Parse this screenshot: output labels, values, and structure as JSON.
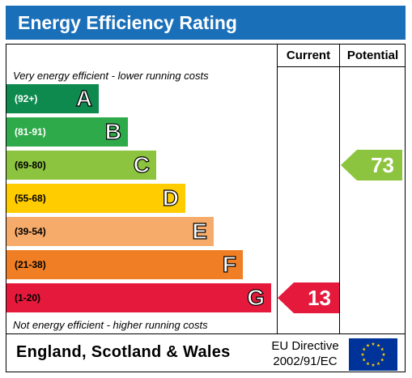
{
  "title": "Energy Efficiency Rating",
  "columns": {
    "current": "Current",
    "potential": "Potential"
  },
  "notes": {
    "top": "Very energy efficient - lower running costs",
    "bottom": "Not energy efficient - higher running costs"
  },
  "bands": [
    {
      "range": "(92+)",
      "letter": "A",
      "color": "#0f8a4f"
    },
    {
      "range": "(81-91)",
      "letter": "B",
      "color": "#2eaa4a"
    },
    {
      "range": "(69-80)",
      "letter": "C",
      "color": "#8cc43f"
    },
    {
      "range": "(55-68)",
      "letter": "D",
      "color": "#ffcc00"
    },
    {
      "range": "(39-54)",
      "letter": "E",
      "color": "#f6ab6a"
    },
    {
      "range": "(21-38)",
      "letter": "F",
      "color": "#ef7e24"
    },
    {
      "range": "(1-20)",
      "letter": "G",
      "color": "#e5193b"
    }
  ],
  "ratings": {
    "current": {
      "value": "13",
      "band": "G",
      "color": "#e5193b"
    },
    "potential": {
      "value": "73",
      "band": "C",
      "color": "#8cc43f"
    }
  },
  "footer": {
    "country": "England, Scotland & Wales",
    "directive_line1": "EU Directive",
    "directive_line2": "2002/91/EC"
  },
  "icons": {
    "eu_flag": "eu-flag-icon"
  },
  "colors": {
    "header": "#1a6fb9",
    "flag_blue": "#003399",
    "flag_stars": "#ffcc00"
  }
}
